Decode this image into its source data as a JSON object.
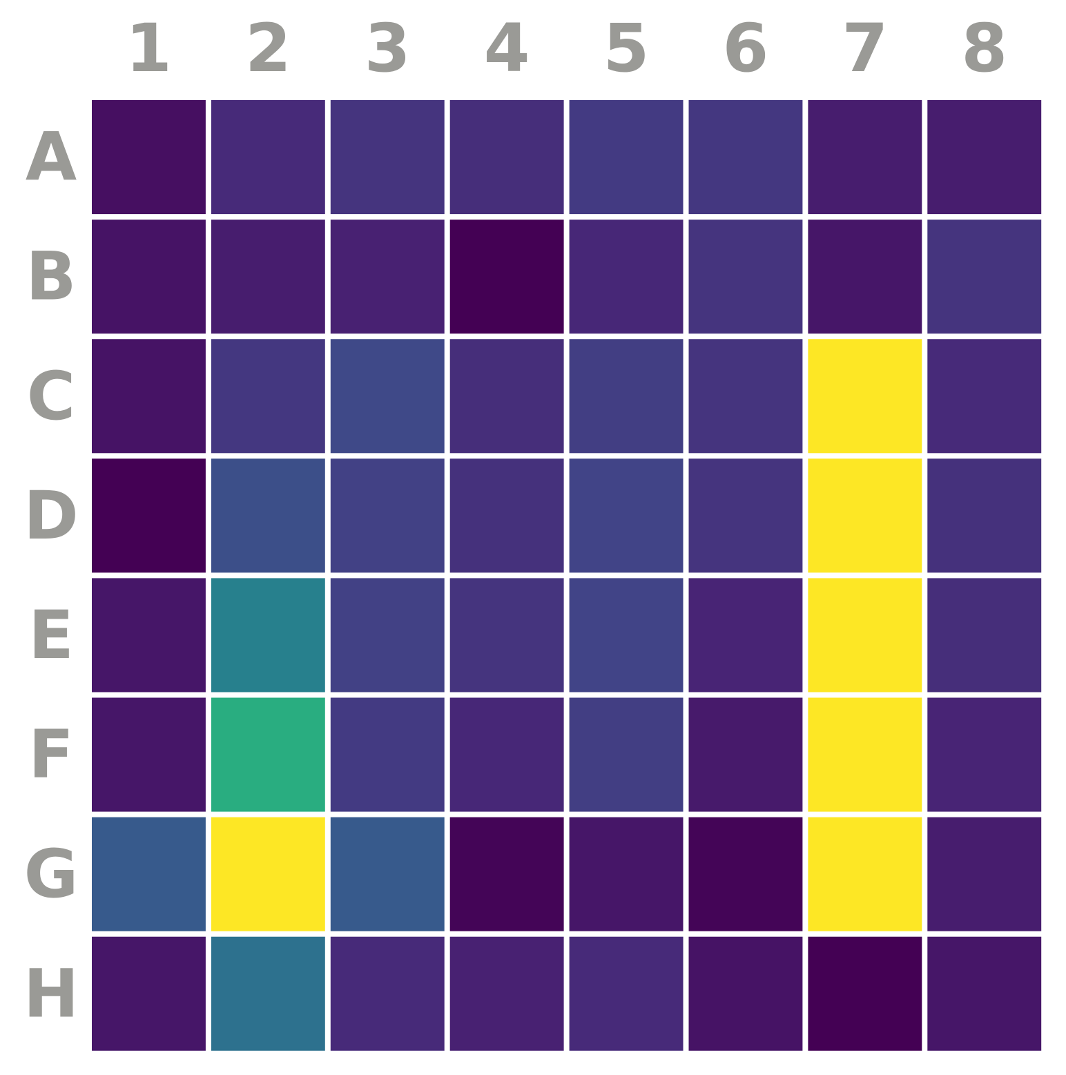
{
  "chart_data": {
    "type": "heatmap",
    "colormap": "viridis",
    "columns": [
      "1",
      "2",
      "3",
      "4",
      "5",
      "6",
      "7",
      "8"
    ],
    "rows": [
      "A",
      "B",
      "C",
      "D",
      "E",
      "F",
      "G",
      "H"
    ],
    "values": [
      [
        0.04,
        0.12,
        0.15,
        0.13,
        0.17,
        0.16,
        0.08,
        0.08
      ],
      [
        0.05,
        0.08,
        0.09,
        0.0,
        0.11,
        0.15,
        0.06,
        0.15
      ],
      [
        0.05,
        0.16,
        0.22,
        0.13,
        0.18,
        0.15,
        1.0,
        0.12
      ],
      [
        0.0,
        0.24,
        0.19,
        0.14,
        0.2,
        0.15,
        1.0,
        0.14
      ],
      [
        0.06,
        0.43,
        0.19,
        0.15,
        0.2,
        0.1,
        1.0,
        0.13
      ],
      [
        0.06,
        0.62,
        0.17,
        0.11,
        0.18,
        0.07,
        1.0,
        0.1
      ],
      [
        0.28,
        1.0,
        0.28,
        0.01,
        0.06,
        0.01,
        1.0,
        0.08
      ],
      [
        0.06,
        0.37,
        0.12,
        0.09,
        0.12,
        0.05,
        0.0,
        0.06
      ]
    ]
  }
}
